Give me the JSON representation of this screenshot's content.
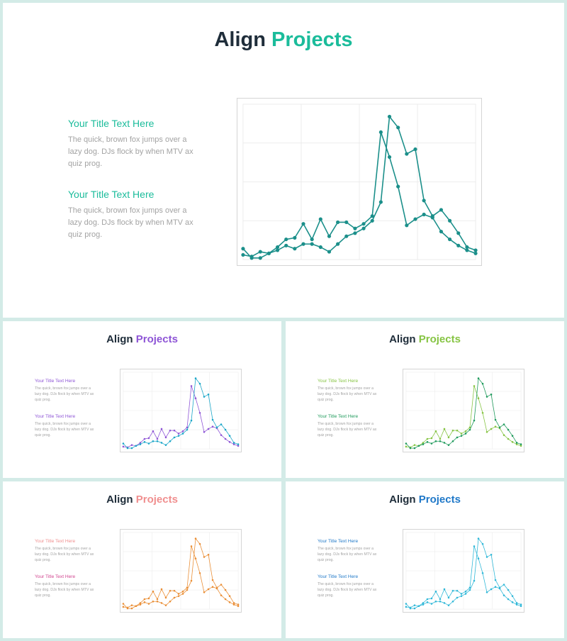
{
  "slides": [
    {
      "title_dark": "Align",
      "title_accent": "Projects",
      "accent_color": "#1bbc9b",
      "block1": {
        "heading": "Your Title Text Here",
        "heading_color": "#1bbc9b",
        "body": "The quick, brown fox jumps over a lazy dog. DJs flock by when MTV ax quiz prog."
      },
      "block2": {
        "heading": "Your Title Text Here",
        "heading_color": "#1bbc9b",
        "body": "The quick, brown fox jumps over a lazy dog. DJs flock by when MTV ax quiz prog."
      },
      "series_colors": [
        "#1b8f8a",
        "#1b8f8a"
      ]
    },
    {
      "title_dark": "Align",
      "title_accent": "Projects",
      "accent_color": "#8e55d6",
      "block1": {
        "heading": "Your Title Text Here",
        "heading_color": "#8e55d6",
        "body": "The quick, brown fox jumps over a lazy dog. DJs flock by when MTV ax quiz prog."
      },
      "block2": {
        "heading": "Your Title Text Here",
        "heading_color": "#8e55d6",
        "body": "The quick, brown fox jumps over a lazy dog. DJs flock by when MTV ax quiz prog."
      },
      "series_colors": [
        "#8e55d6",
        "#1aa6c8"
      ]
    },
    {
      "title_dark": "Align",
      "title_accent": "Projects",
      "accent_color": "#86c443",
      "block1": {
        "heading": "Your Title Text Here",
        "heading_color": "#86c443",
        "body": "The quick, brown fox jumps over a lazy dog. DJs flock by when MTV ax quiz prog."
      },
      "block2": {
        "heading": "Your Title Text Here",
        "heading_color": "#1e9a5b",
        "body": "The quick, brown fox jumps over a lazy dog. DJs flock by when MTV ax quiz prog."
      },
      "series_colors": [
        "#86c443",
        "#1e9a5b"
      ]
    },
    {
      "title_dark": "Align",
      "title_accent": "Projects",
      "accent_color": "#f08f8f",
      "block1": {
        "heading": "Your Title Text Here",
        "heading_color": "#f08f8f",
        "body": "The quick, brown fox jumps over a lazy dog. DJs flock by when MTV ax quiz prog."
      },
      "block2": {
        "heading": "Your Title Text Here",
        "heading_color": "#d1458f",
        "body": "The quick, brown fox jumps over a lazy dog. DJs flock by when MTV ax quiz prog."
      },
      "series_colors": [
        "#ea8f37",
        "#ea8f37"
      ]
    },
    {
      "title_dark": "Align",
      "title_accent": "Projects",
      "accent_color": "#1f78c8",
      "block1": {
        "heading": "Your Title Text Here",
        "heading_color": "#1f78c8",
        "body": "The quick, brown fox jumps over a lazy dog. DJs flock by when MTV ax quiz prog."
      },
      "block2": {
        "heading": "Your Title Text Here",
        "heading_color": "#1f78c8",
        "body": "The quick, brown fox jumps over a lazy dog. DJs flock by when MTV ax quiz prog."
      },
      "series_colors": [
        "#30b8d8",
        "#30b8d8"
      ]
    }
  ],
  "chart_data": {
    "type": "line",
    "x": [
      1,
      2,
      3,
      4,
      5,
      6,
      7,
      8,
      9,
      10,
      11,
      12,
      13,
      14,
      15,
      16,
      17,
      18,
      19,
      20,
      21,
      22,
      23,
      24,
      25,
      26,
      27,
      28
    ],
    "ylim": [
      0,
      100
    ],
    "grid": true,
    "series": [
      {
        "values": [
          3,
          2,
          5,
          4,
          8,
          13,
          14,
          23,
          13,
          26,
          15,
          24,
          24,
          20,
          23,
          28,
          82,
          66,
          47,
          22,
          26,
          29,
          27,
          18,
          13,
          9,
          6,
          4
        ]
      },
      {
        "values": [
          7,
          1,
          1,
          4,
          6,
          9,
          7,
          10,
          10,
          8,
          5,
          10,
          15,
          17,
          20,
          25,
          37,
          92,
          85,
          68,
          71,
          38,
          28,
          32,
          25,
          17,
          8,
          6
        ]
      }
    ]
  }
}
